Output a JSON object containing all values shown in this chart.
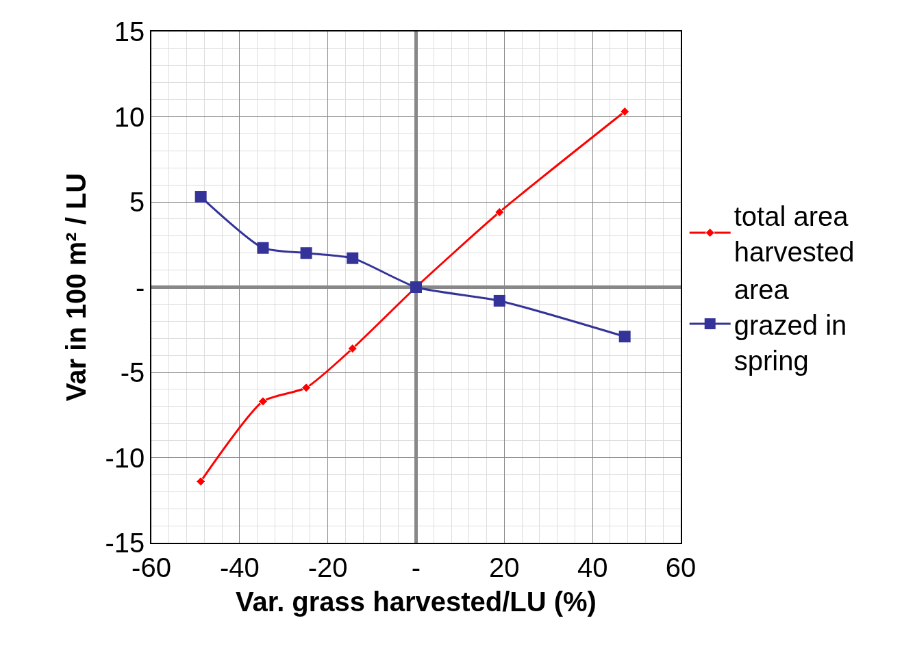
{
  "chart_data": {
    "type": "line",
    "xlabel": "Var. grass harvested/LU (%)",
    "ylabel": "Var in 100 m² / LU",
    "x": [
      -48.8,
      -34.7,
      -24.9,
      -14.4,
      0,
      18.9,
      47.3
    ],
    "series": [
      {
        "name": "total area harvested",
        "color": "#ff0000",
        "marker": "diamond",
        "values": [
          -11.4,
          -6.7,
          -5.9,
          -3.6,
          0,
          4.4,
          10.3
        ]
      },
      {
        "name": "area grazed in spring",
        "color": "#333399",
        "marker": "square",
        "values": [
          5.3,
          2.3,
          2.0,
          1.7,
          0,
          -0.8,
          -2.9
        ]
      }
    ],
    "xlim": [
      -60,
      60
    ],
    "xticks": [
      -60,
      -40,
      -20,
      {
        "value": 0,
        "label": "-"
      },
      20,
      40,
      60
    ],
    "ylim": [
      -15,
      15
    ],
    "yticks": [
      -15,
      -10,
      -5,
      {
        "value": 0,
        "label": "-"
      },
      5,
      10,
      15
    ],
    "grid": true,
    "legend": "right",
    "line_style": "solid"
  }
}
